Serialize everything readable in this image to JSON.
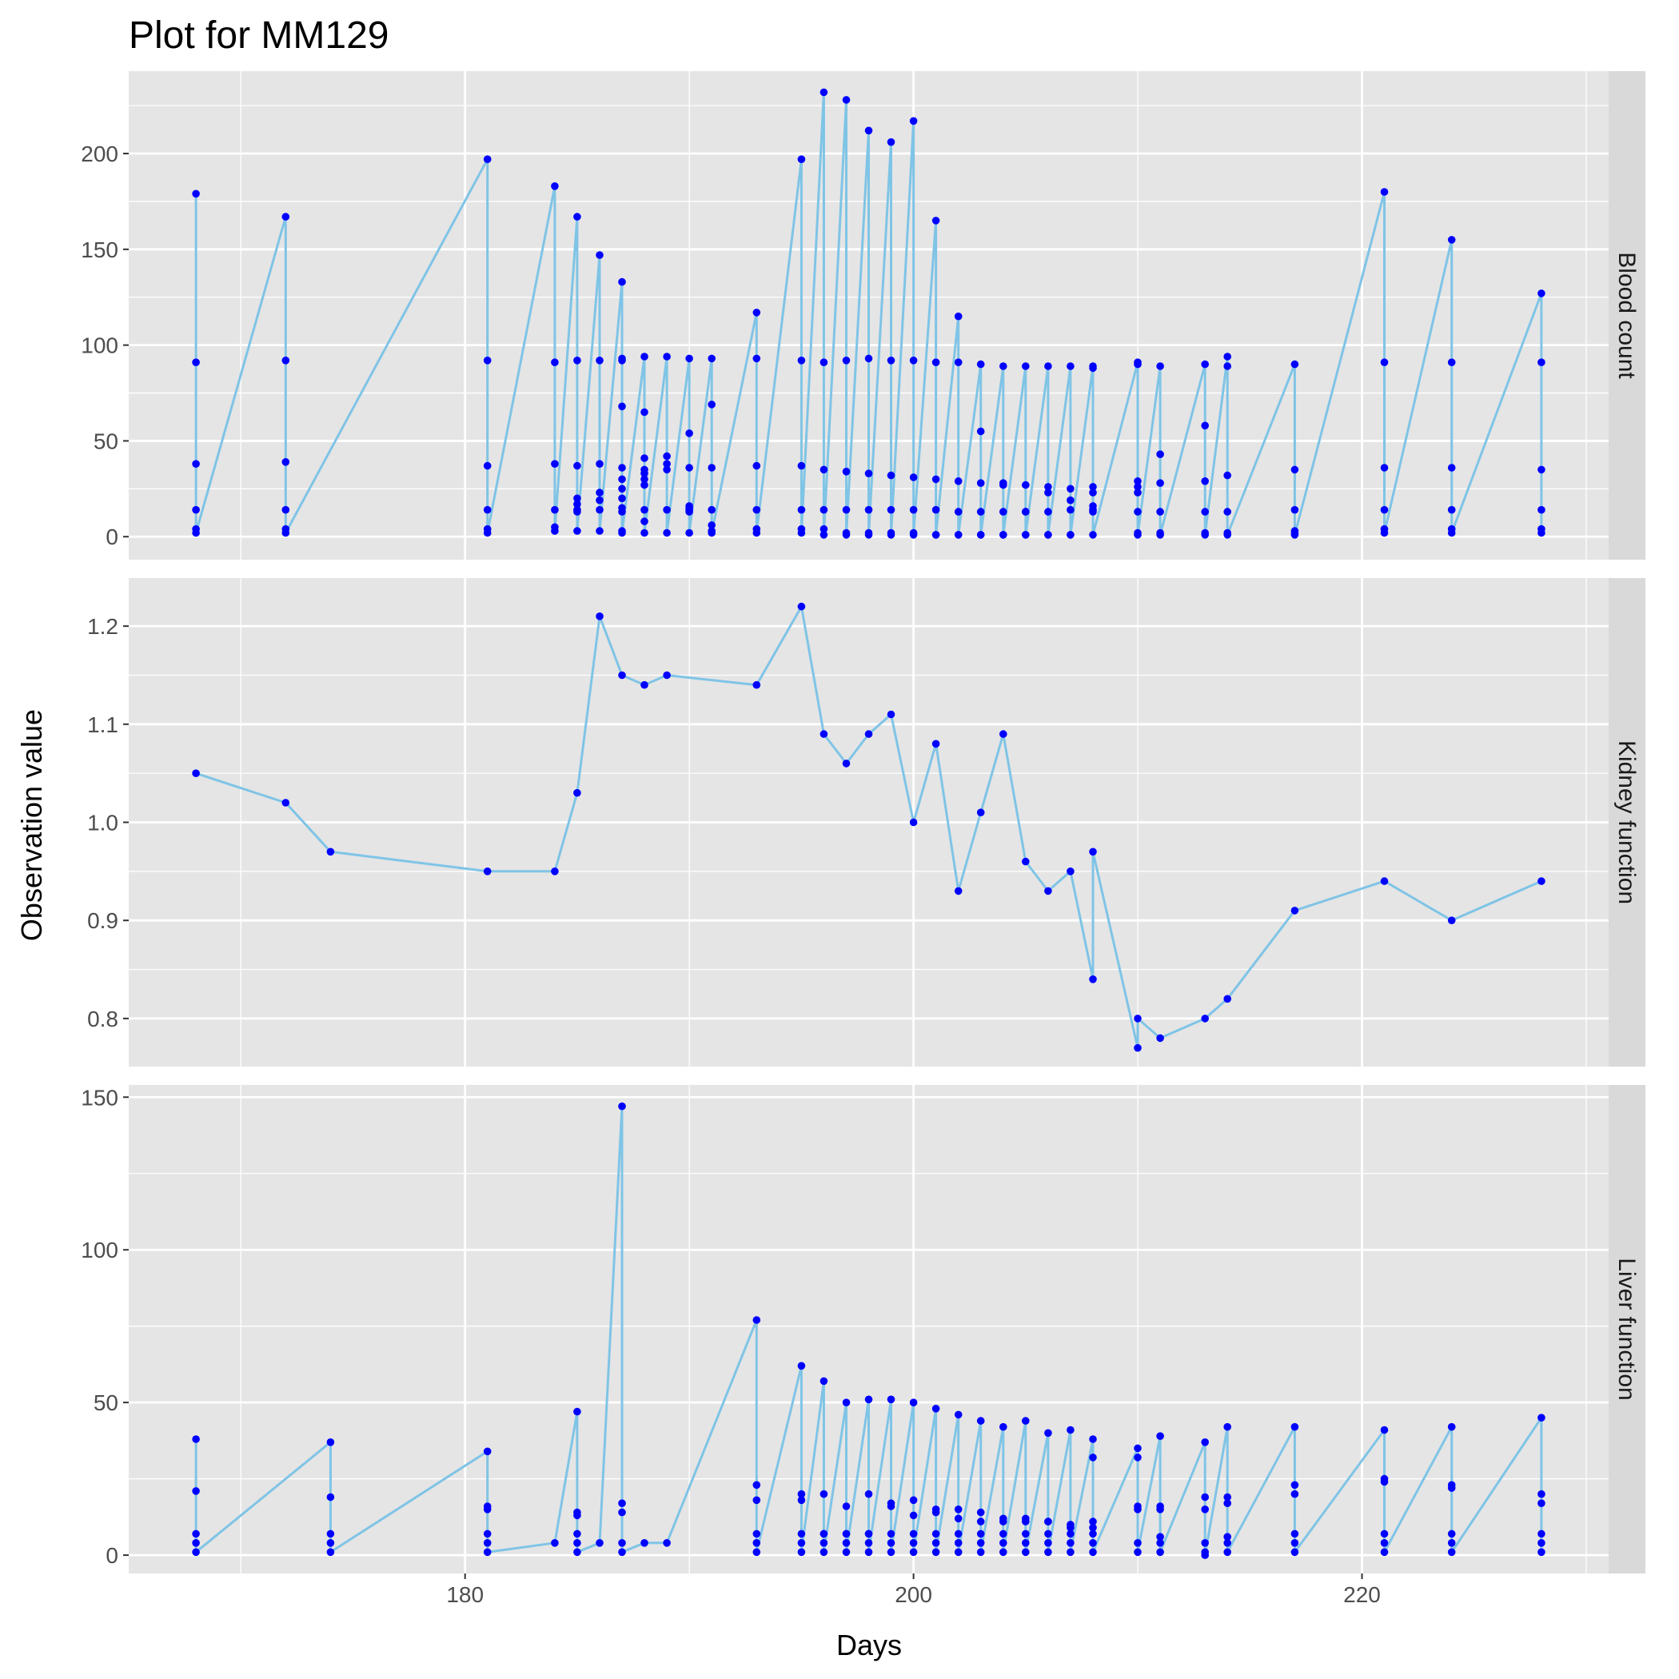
{
  "chart_data": {
    "type": "line",
    "title": "Plot for MM129",
    "xlabel": "Days",
    "ylabel": "Observation value",
    "xlim": [
      165,
      231
    ],
    "x_ticks": [
      180,
      200,
      220
    ],
    "line_color": "#7fc4e6",
    "point_color": "#0000ff",
    "panel_bg": "#e5e5e5",
    "strip_bg": "#d9d9d9",
    "grid": true,
    "panels": [
      {
        "name": "Blood count",
        "ylim": [
          -12,
          243
        ],
        "y_ticks": [
          0,
          50,
          100,
          150,
          200
        ],
        "x": [
          168,
          168,
          168,
          168,
          168,
          168,
          172,
          172,
          172,
          172,
          172,
          172,
          181,
          181,
          181,
          181,
          181,
          181,
          184,
          184,
          184,
          184,
          184,
          184,
          185,
          185,
          185,
          185,
          185,
          185,
          185,
          185,
          186,
          186,
          186,
          186,
          186,
          186,
          186,
          187,
          187,
          187,
          187,
          187,
          187,
          187,
          187,
          187,
          187,
          187,
          187,
          188,
          188,
          188,
          188,
          188,
          188,
          188,
          188,
          188,
          188,
          189,
          189,
          189,
          189,
          189,
          189,
          190,
          190,
          190,
          190,
          190,
          190,
          190,
          190,
          191,
          191,
          191,
          191,
          191,
          191,
          191,
          193,
          193,
          193,
          193,
          193,
          193,
          195,
          195,
          195,
          195,
          195,
          195,
          196,
          196,
          196,
          196,
          196,
          196,
          197,
          197,
          197,
          197,
          197,
          197,
          198,
          198,
          198,
          198,
          198,
          198,
          199,
          199,
          199,
          199,
          199,
          199,
          200,
          200,
          200,
          200,
          200,
          200,
          201,
          201,
          201,
          201,
          201,
          201,
          202,
          202,
          202,
          202,
          202,
          202,
          203,
          203,
          203,
          203,
          203,
          203,
          204,
          204,
          204,
          204,
          204,
          204,
          205,
          205,
          205,
          205,
          205,
          205,
          206,
          206,
          206,
          206,
          206,
          206,
          207,
          207,
          207,
          207,
          207,
          207,
          208,
          208,
          208,
          208,
          208,
          208,
          208,
          208,
          210,
          210,
          210,
          210,
          210,
          210,
          210,
          210,
          211,
          211,
          211,
          211,
          211,
          211,
          213,
          213,
          213,
          213,
          213,
          213,
          214,
          214,
          214,
          214,
          214,
          214,
          217,
          217,
          217,
          217,
          217,
          217,
          221,
          221,
          221,
          221,
          221,
          221,
          224,
          224,
          224,
          224,
          224,
          224,
          228,
          228,
          228,
          228,
          228,
          228
        ],
        "y": [
          179,
          91,
          38,
          14,
          4,
          2,
          167,
          92,
          39,
          14,
          4,
          2,
          197,
          92,
          37,
          14,
          4,
          2,
          183,
          91,
          38,
          14,
          5,
          3,
          167,
          92,
          37,
          20,
          17,
          14,
          13,
          3,
          147,
          92,
          38,
          23,
          19,
          14,
          3,
          133,
          93,
          92,
          68,
          36,
          30,
          25,
          20,
          15,
          13,
          3,
          2,
          94,
          65,
          41,
          35,
          33,
          30,
          27,
          14,
          8,
          2,
          94,
          42,
          38,
          35,
          14,
          2,
          93,
          54,
          36,
          16,
          15,
          14,
          13,
          2,
          93,
          69,
          36,
          14,
          6,
          3,
          2,
          117,
          93,
          37,
          14,
          4,
          2,
          197,
          92,
          37,
          14,
          4,
          2,
          232,
          91,
          35,
          14,
          4,
          1,
          228,
          92,
          34,
          14,
          2,
          1,
          212,
          93,
          33,
          14,
          2,
          1,
          206,
          92,
          32,
          14,
          2,
          1,
          217,
          92,
          31,
          14,
          2,
          1,
          165,
          91,
          30,
          14,
          1,
          1,
          115,
          91,
          29,
          13,
          1,
          1,
          90,
          55,
          28,
          13,
          1,
          1,
          89,
          28,
          27,
          13,
          1,
          1,
          89,
          27,
          13,
          13,
          1,
          1,
          89,
          26,
          23,
          13,
          1,
          1,
          89,
          25,
          19,
          14,
          1,
          1,
          89,
          88,
          26,
          23,
          16,
          14,
          13,
          1,
          91,
          90,
          29,
          26,
          23,
          13,
          2,
          1,
          89,
          43,
          28,
          13,
          2,
          1,
          90,
          58,
          29,
          13,
          2,
          1,
          94,
          89,
          32,
          13,
          2,
          1,
          90,
          35,
          14,
          3,
          2,
          1,
          180,
          91,
          36,
          14,
          4,
          2,
          155,
          91,
          36,
          14,
          4,
          2,
          127,
          91,
          35,
          14,
          4,
          2
        ]
      },
      {
        "name": "Kidney function",
        "ylim": [
          0.751,
          1.249
        ],
        "y_ticks": [
          0.8,
          0.9,
          1.0,
          1.1,
          1.2
        ],
        "y_tick_labels": [
          "0.8",
          "0.9",
          "1.0",
          "1.1",
          "1.2"
        ],
        "x": [
          168,
          172,
          174,
          181,
          184,
          185,
          186,
          187,
          188,
          189,
          193,
          195,
          196,
          197,
          198,
          199,
          200,
          201,
          202,
          203,
          204,
          205,
          206,
          207,
          208,
          208,
          210,
          210,
          211,
          213,
          214,
          217,
          221,
          224,
          228
        ],
        "y": [
          1.05,
          1.02,
          0.97,
          0.95,
          0.95,
          1.03,
          1.21,
          1.15,
          1.14,
          1.15,
          1.14,
          1.22,
          1.09,
          1.06,
          1.09,
          1.11,
          1.0,
          1.08,
          0.93,
          1.01,
          1.09,
          0.96,
          0.93,
          0.95,
          0.84,
          0.97,
          0.77,
          0.8,
          0.78,
          0.8,
          0.82,
          0.91,
          0.94,
          0.9,
          0.94
        ]
      },
      {
        "name": "Liver function",
        "ylim": [
          -6,
          154
        ],
        "y_ticks": [
          0,
          50,
          100,
          150
        ],
        "x": [
          168,
          168,
          168,
          168,
          168,
          174,
          174,
          174,
          174,
          174,
          181,
          181,
          181,
          181,
          181,
          181,
          184,
          185,
          185,
          185,
          185,
          185,
          185,
          186,
          187,
          187,
          187,
          187,
          187,
          188,
          189,
          193,
          193,
          193,
          193,
          193,
          193,
          195,
          195,
          195,
          195,
          195,
          195,
          196,
          196,
          196,
          196,
          196,
          196,
          197,
          197,
          197,
          197,
          197,
          197,
          198,
          198,
          198,
          198,
          198,
          198,
          199,
          199,
          199,
          199,
          199,
          199,
          200,
          200,
          200,
          200,
          200,
          200,
          201,
          201,
          201,
          201,
          201,
          201,
          202,
          202,
          202,
          202,
          202,
          202,
          203,
          203,
          203,
          203,
          203,
          203,
          204,
          204,
          204,
          204,
          204,
          204,
          205,
          205,
          205,
          205,
          205,
          205,
          206,
          206,
          206,
          206,
          206,
          206,
          207,
          207,
          207,
          207,
          207,
          207,
          208,
          208,
          208,
          208,
          208,
          208,
          208,
          210,
          210,
          210,
          210,
          210,
          210,
          211,
          211,
          211,
          211,
          211,
          211,
          213,
          213,
          213,
          213,
          213,
          213,
          214,
          214,
          214,
          214,
          214,
          214,
          217,
          217,
          217,
          217,
          217,
          217,
          221,
          221,
          221,
          221,
          221,
          221,
          224,
          224,
          224,
          224,
          224,
          224,
          228,
          228,
          228,
          228,
          228,
          228
        ],
        "y": [
          38,
          21,
          7,
          4,
          1,
          37,
          19,
          7,
          4,
          1,
          34,
          16,
          15,
          7,
          4,
          1,
          4,
          47,
          14,
          13,
          7,
          4,
          1,
          4,
          147,
          17,
          14,
          4,
          1,
          4,
          4,
          77,
          23,
          18,
          7,
          4,
          1,
          62,
          20,
          18,
          7,
          4,
          1,
          57,
          20,
          7,
          7,
          4,
          1,
          50,
          16,
          7,
          7,
          4,
          1,
          51,
          20,
          7,
          7,
          4,
          1,
          51,
          17,
          16,
          7,
          4,
          1,
          50,
          18,
          13,
          7,
          4,
          1,
          48,
          15,
          14,
          7,
          4,
          1,
          46,
          15,
          12,
          7,
          4,
          1,
          44,
          14,
          11,
          7,
          4,
          1,
          42,
          12,
          11,
          7,
          4,
          1,
          44,
          12,
          11,
          7,
          4,
          1,
          40,
          11,
          11,
          7,
          4,
          1,
          41,
          10,
          9,
          7,
          4,
          1,
          38,
          32,
          11,
          9,
          7,
          4,
          1,
          35,
          32,
          16,
          15,
          4,
          1,
          39,
          16,
          15,
          6,
          4,
          1,
          37,
          19,
          15,
          4,
          1,
          0,
          42,
          19,
          17,
          6,
          4,
          1,
          42,
          23,
          20,
          7,
          4,
          1,
          41,
          25,
          24,
          7,
          4,
          1,
          42,
          23,
          22,
          7,
          4,
          1,
          45,
          20,
          17,
          7,
          4,
          1
        ]
      }
    ]
  }
}
